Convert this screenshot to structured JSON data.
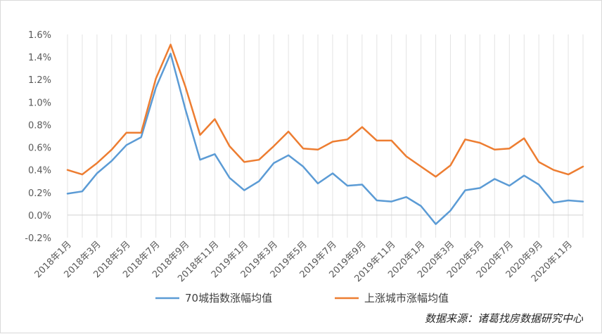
{
  "chart_data": {
    "type": "line",
    "x": [
      "2018年1月",
      "2018年2月",
      "2018年3月",
      "2018年4月",
      "2018年5月",
      "2018年6月",
      "2018年7月",
      "2018年8月",
      "2018年9月",
      "2018年10月",
      "2018年11月",
      "2018年12月",
      "2019年1月",
      "2019年2月",
      "2019年3月",
      "2019年4月",
      "2019年5月",
      "2019年6月",
      "2019年7月",
      "2019年8月",
      "2019年9月",
      "2019年10月",
      "2019年11月",
      "2019年12月",
      "2020年1月",
      "2020年2月",
      "2020年3月",
      "2020年4月",
      "2020年5月",
      "2020年6月",
      "2020年7月",
      "2020年8月",
      "2020年9月",
      "2020年10月",
      "2020年11月",
      "2020年12月"
    ],
    "xtick_labels": [
      "2018年1月",
      "2018年3月",
      "2018年5月",
      "2018年7月",
      "2018年9月",
      "2018年11月",
      "2019年1月",
      "2019年3月",
      "2019年5月",
      "2019年7月",
      "2019年9月",
      "2019年11月",
      "2020年1月",
      "2020年3月",
      "2020年5月",
      "2020年7月",
      "2020年9月",
      "2020年11月"
    ],
    "ylim": [
      -0.2,
      1.6
    ],
    "yticks": [
      -0.2,
      0.0,
      0.2,
      0.4,
      0.6,
      0.8,
      1.0,
      1.2,
      1.4,
      1.6
    ],
    "ytick_labels": [
      "-0.2%",
      "0.0%",
      "0.2%",
      "0.4%",
      "0.6%",
      "0.8%",
      "1.0%",
      "1.2%",
      "1.4%",
      "1.6%"
    ],
    "grid": "vertical",
    "legend": "bottom",
    "series": [
      {
        "name": "70城指数涨幅均值",
        "color": "#5b9bd5",
        "values": [
          0.19,
          0.21,
          0.37,
          0.48,
          0.62,
          0.69,
          1.13,
          1.43,
          0.94,
          0.49,
          0.54,
          0.33,
          0.22,
          0.3,
          0.46,
          0.53,
          0.43,
          0.28,
          0.37,
          0.26,
          0.27,
          0.13,
          0.12,
          0.16,
          0.08,
          -0.08,
          0.04,
          0.22,
          0.24,
          0.32,
          0.26,
          0.35,
          0.27,
          0.11,
          0.13,
          0.12
        ]
      },
      {
        "name": "上涨城市涨幅均值",
        "color": "#ed7d31",
        "values": [
          0.4,
          0.36,
          0.46,
          0.58,
          0.73,
          0.73,
          1.21,
          1.51,
          1.14,
          0.71,
          0.85,
          0.61,
          0.47,
          0.49,
          0.61,
          0.74,
          0.59,
          0.58,
          0.65,
          0.67,
          0.78,
          0.66,
          0.66,
          0.52,
          0.43,
          0.34,
          0.44,
          0.67,
          0.64,
          0.58,
          0.59,
          0.68,
          0.47,
          0.4,
          0.36,
          0.43
        ]
      }
    ]
  },
  "source_text": "数据来源：诸葛找房数据研究中心"
}
